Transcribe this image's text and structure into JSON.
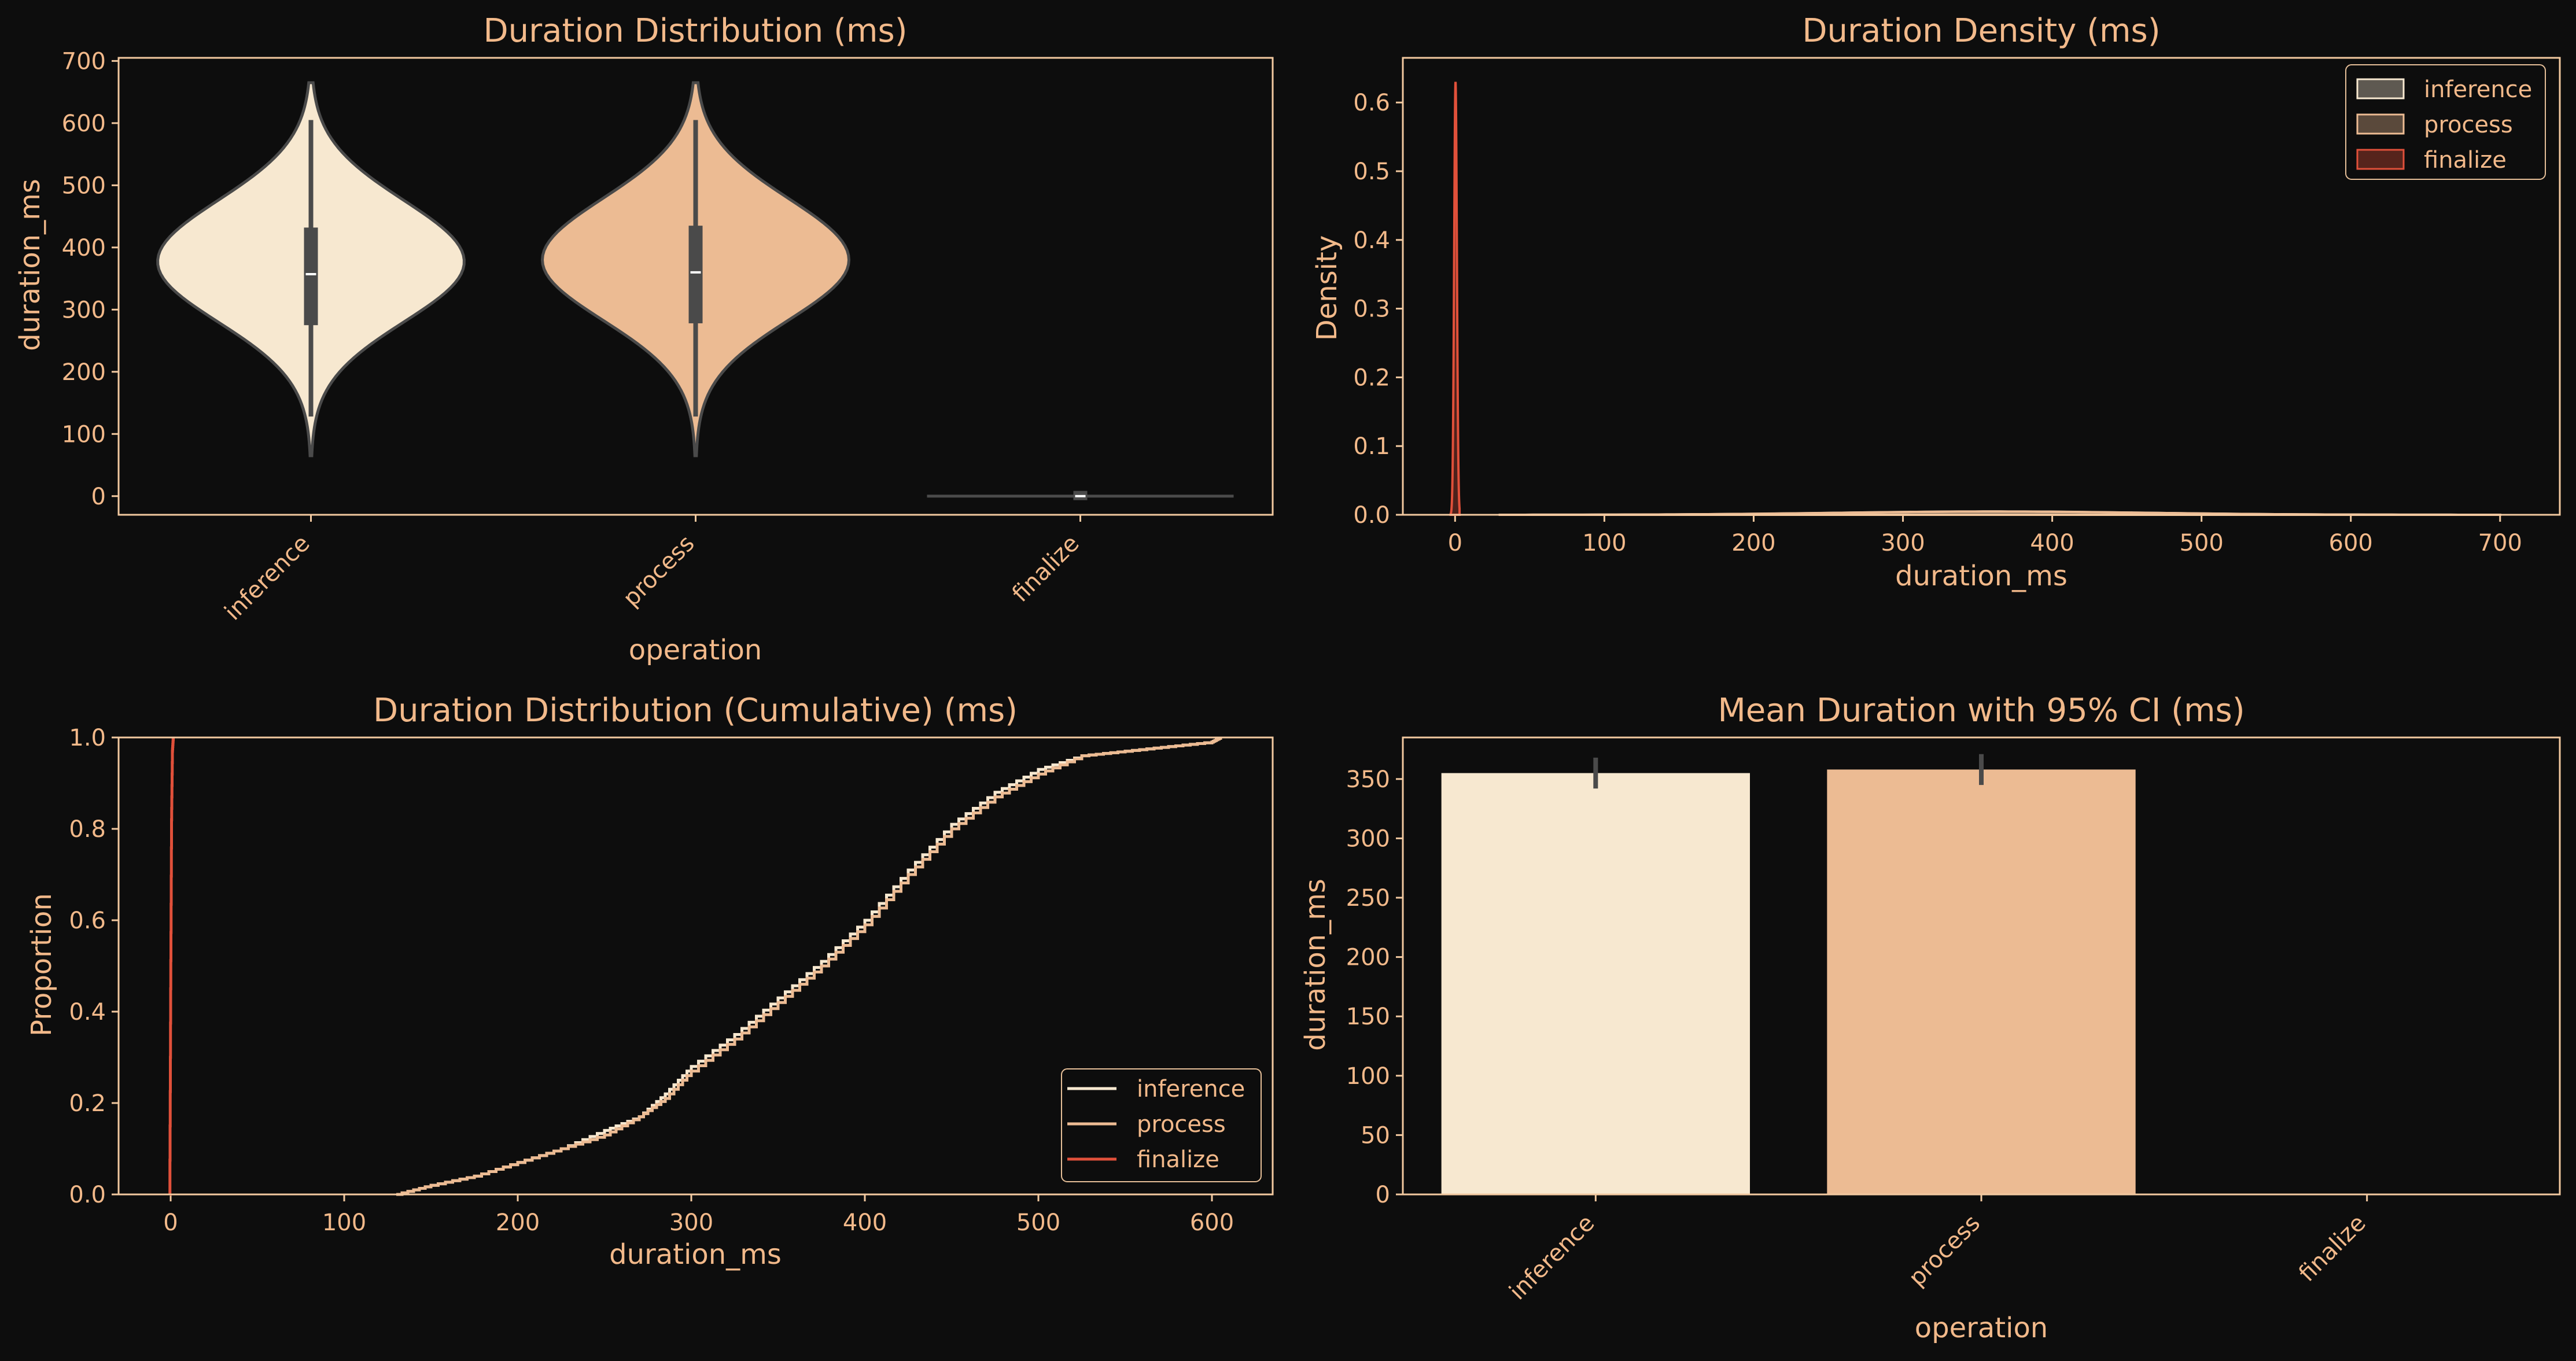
{
  "colors": {
    "background": "#0d0d0d",
    "text": "#f2b98a",
    "frame": "#f2c9a0",
    "inference": "#f7e8d0",
    "process": "#ecbb93",
    "finalize": "#e0503a",
    "whisker": "#4a4a4a"
  },
  "chart_data": [
    {
      "type": "violin",
      "title": "Duration Distribution (ms)",
      "xlabel": "operation",
      "ylabel": "duration_ms",
      "categories": [
        "inference",
        "process",
        "finalize"
      ],
      "ylim": [
        -30,
        705
      ],
      "yticks": [
        0,
        100,
        200,
        300,
        400,
        500,
        600,
        700
      ],
      "violins": [
        {
          "name": "inference",
          "min": 65,
          "max": 665,
          "q1": 275,
          "median": 357,
          "q3": 432,
          "whisker_low": 128,
          "whisker_high": 605
        },
        {
          "name": "process",
          "min": 65,
          "max": 665,
          "q1": 278,
          "median": 360,
          "q3": 435,
          "whisker_low": 128,
          "whisker_high": 605
        },
        {
          "name": "finalize",
          "min": -2,
          "max": 2,
          "q1": -1,
          "median": 0,
          "q3": 1,
          "whisker_low": -2,
          "whisker_high": 2
        }
      ]
    },
    {
      "type": "density",
      "title": "Duration Density (ms)",
      "xlabel": "duration_ms",
      "ylabel": "Density",
      "xlim": [
        -35,
        740
      ],
      "ylim": [
        0,
        0.665
      ],
      "xticks": [
        0,
        100,
        200,
        300,
        400,
        500,
        600,
        700
      ],
      "yticks": [
        0.0,
        0.1,
        0.2,
        0.3,
        0.4,
        0.5,
        0.6
      ],
      "legend": [
        "inference",
        "process",
        "finalize"
      ],
      "legend_position": "top-right",
      "series": [
        {
          "name": "inference",
          "peak_x": 360,
          "peak_density": 0.0048,
          "range": [
            30,
            700
          ]
        },
        {
          "name": "process",
          "peak_x": 360,
          "peak_density": 0.0047,
          "range": [
            30,
            700
          ]
        },
        {
          "name": "finalize",
          "peak_x": 0.3,
          "peak_density": 0.63,
          "range": [
            -3,
            3
          ]
        }
      ]
    },
    {
      "type": "ecdf",
      "title": "Duration Distribution (Cumulative) (ms)",
      "xlabel": "duration_ms",
      "ylabel": "Proportion",
      "xlim": [
        -30,
        635
      ],
      "ylim": [
        0,
        1.0
      ],
      "xticks": [
        0,
        100,
        200,
        300,
        400,
        500,
        600
      ],
      "yticks": [
        0.0,
        0.2,
        0.4,
        0.6,
        0.8,
        1.0
      ],
      "legend": [
        "inference",
        "process",
        "finalize"
      ],
      "legend_position": "bottom-right",
      "series": [
        {
          "name": "inference",
          "x": [
            130,
            150,
            175,
            200,
            225,
            250,
            270,
            285,
            300,
            325,
            350,
            375,
            400,
            425,
            450,
            475,
            500,
            525,
            550,
            575,
            600,
            605
          ],
          "y": [
            0.0,
            0.02,
            0.04,
            0.07,
            0.1,
            0.14,
            0.17,
            0.22,
            0.28,
            0.35,
            0.43,
            0.51,
            0.6,
            0.71,
            0.81,
            0.88,
            0.93,
            0.96,
            0.97,
            0.98,
            0.99,
            1.0
          ]
        },
        {
          "name": "process",
          "x": [
            130,
            150,
            175,
            200,
            225,
            250,
            270,
            285,
            300,
            325,
            350,
            375,
            400,
            425,
            450,
            475,
            500,
            525,
            550,
            575,
            600,
            605
          ],
          "y": [
            0.0,
            0.02,
            0.04,
            0.07,
            0.1,
            0.13,
            0.17,
            0.21,
            0.27,
            0.34,
            0.42,
            0.5,
            0.59,
            0.7,
            0.8,
            0.87,
            0.92,
            0.96,
            0.97,
            0.98,
            0.99,
            1.0
          ]
        },
        {
          "name": "finalize",
          "x": [
            -0.5,
            0,
            0.5,
            1,
            1.5
          ],
          "y": [
            0.0,
            0.45,
            0.82,
            0.97,
            1.0
          ]
        }
      ]
    },
    {
      "type": "bar",
      "title": "Mean Duration with 95% CI (ms)",
      "xlabel": "operation",
      "ylabel": "duration_ms",
      "categories": [
        "inference",
        "process",
        "finalize"
      ],
      "values": [
        355,
        358,
        0.05
      ],
      "ci": [
        [
          342,
          368
        ],
        [
          345,
          371
        ],
        [
          -0.5,
          0.5
        ]
      ],
      "ylim": [
        0,
        385
      ],
      "yticks": [
        0,
        50,
        100,
        150,
        200,
        250,
        300,
        350
      ]
    }
  ]
}
